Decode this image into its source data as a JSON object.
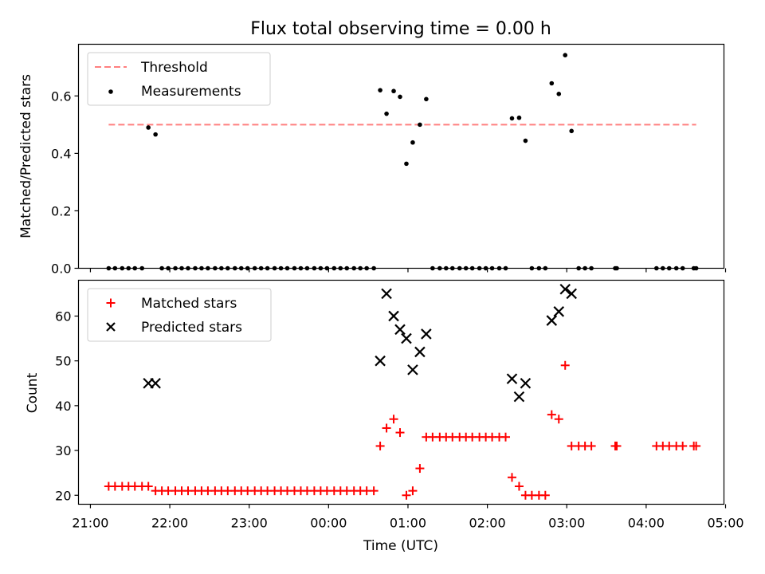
{
  "chart_data": [
    {
      "type": "scatter",
      "title": "Flux total observing time = 0.00 h",
      "xlabel": "",
      "ylabel": "Matched/Predicted stars",
      "ylim": [
        0,
        0.78
      ],
      "yticks": [
        "0.0",
        "0.2",
        "0.4",
        "0.6"
      ],
      "yticks_values": [
        0,
        0.2,
        0.4,
        0.6
      ],
      "legend": {
        "placement": "upper-left",
        "entries": [
          "Threshold",
          "Measurements"
        ]
      },
      "threshold": {
        "name": "Threshold",
        "value": 0.5,
        "x_start": 21.23,
        "x_end": 28.63,
        "color": "#ff7f7f"
      },
      "series": [
        {
          "name": "Measurements",
          "color": "#000000",
          "points": [
            [
              21.23,
              0
            ],
            [
              21.31,
              0
            ],
            [
              21.4,
              0
            ],
            [
              21.48,
              0
            ],
            [
              21.56,
              0
            ],
            [
              21.65,
              0
            ],
            [
              21.73,
              0.49
            ],
            [
              21.82,
              0.466
            ],
            [
              21.9,
              0
            ],
            [
              21.98,
              0
            ],
            [
              22.07,
              0
            ],
            [
              22.15,
              0
            ],
            [
              22.23,
              0
            ],
            [
              22.32,
              0
            ],
            [
              22.4,
              0
            ],
            [
              22.48,
              0
            ],
            [
              22.57,
              0
            ],
            [
              22.65,
              0
            ],
            [
              22.73,
              0
            ],
            [
              22.82,
              0
            ],
            [
              22.9,
              0
            ],
            [
              22.98,
              0
            ],
            [
              23.07,
              0
            ],
            [
              23.15,
              0
            ],
            [
              23.23,
              0
            ],
            [
              23.32,
              0
            ],
            [
              23.4,
              0
            ],
            [
              23.48,
              0
            ],
            [
              23.57,
              0
            ],
            [
              23.65,
              0
            ],
            [
              23.73,
              0
            ],
            [
              23.82,
              0
            ],
            [
              23.9,
              0
            ],
            [
              23.98,
              0
            ],
            [
              24.07,
              0
            ],
            [
              24.15,
              0
            ],
            [
              24.23,
              0
            ],
            [
              24.32,
              0
            ],
            [
              24.4,
              0
            ],
            [
              24.48,
              0
            ],
            [
              24.57,
              0
            ],
            [
              24.65,
              0.62
            ],
            [
              24.73,
              0.538
            ],
            [
              24.82,
              0.617
            ],
            [
              24.9,
              0.597
            ],
            [
              24.98,
              0.364
            ],
            [
              25.06,
              0.438
            ],
            [
              25.15,
              0.5
            ],
            [
              25.23,
              0.589
            ],
            [
              25.31,
              0
            ],
            [
              25.4,
              0
            ],
            [
              25.48,
              0
            ],
            [
              25.56,
              0
            ],
            [
              25.65,
              0
            ],
            [
              25.73,
              0
            ],
            [
              25.81,
              0
            ],
            [
              25.9,
              0
            ],
            [
              25.98,
              0
            ],
            [
              26.06,
              0
            ],
            [
              26.15,
              0
            ],
            [
              26.23,
              0
            ],
            [
              26.31,
              0.522
            ],
            [
              26.4,
              0.524
            ],
            [
              26.48,
              0.444
            ],
            [
              26.56,
              0
            ],
            [
              26.65,
              0
            ],
            [
              26.73,
              0
            ],
            [
              26.81,
              0.644
            ],
            [
              26.9,
              0.607
            ],
            [
              26.98,
              0.742
            ],
            [
              27.06,
              0.478
            ],
            [
              27.15,
              0
            ],
            [
              27.23,
              0
            ],
            [
              27.31,
              0
            ],
            [
              27.61,
              0
            ],
            [
              27.63,
              0
            ],
            [
              28.13,
              0
            ],
            [
              28.21,
              0
            ],
            [
              28.29,
              0
            ],
            [
              28.38,
              0
            ],
            [
              28.46,
              0
            ],
            [
              28.6,
              0
            ],
            [
              28.63,
              0
            ]
          ]
        }
      ]
    },
    {
      "type": "scatter",
      "title": "",
      "xlabel": "Time (UTC)",
      "ylabel": "Count",
      "ylim": [
        18,
        68
      ],
      "yticks": [
        "20",
        "30",
        "40",
        "50",
        "60"
      ],
      "yticks_values": [
        20,
        30,
        40,
        50,
        60
      ],
      "xlim": [
        20.85,
        28.98
      ],
      "xticks": [
        "21:00",
        "22:00",
        "23:00",
        "00:00",
        "01:00",
        "02:00",
        "03:00",
        "04:00",
        "05:00"
      ],
      "xticks_values": [
        21,
        22,
        23,
        24,
        25,
        26,
        27,
        28,
        29
      ],
      "legend": {
        "placement": "upper-left",
        "entries": [
          "Matched stars",
          "Predicted stars"
        ]
      },
      "series": [
        {
          "name": "Matched stars",
          "marker": "plus",
          "color": "#ff0000",
          "points": [
            [
              21.23,
              22
            ],
            [
              21.31,
              22
            ],
            [
              21.4,
              22
            ],
            [
              21.48,
              22
            ],
            [
              21.56,
              22
            ],
            [
              21.65,
              22
            ],
            [
              21.73,
              22
            ],
            [
              21.82,
              21
            ],
            [
              21.9,
              21
            ],
            [
              21.98,
              21
            ],
            [
              22.07,
              21
            ],
            [
              22.15,
              21
            ],
            [
              22.23,
              21
            ],
            [
              22.32,
              21
            ],
            [
              22.4,
              21
            ],
            [
              22.48,
              21
            ],
            [
              22.57,
              21
            ],
            [
              22.65,
              21
            ],
            [
              22.73,
              21
            ],
            [
              22.82,
              21
            ],
            [
              22.9,
              21
            ],
            [
              22.98,
              21
            ],
            [
              23.07,
              21
            ],
            [
              23.15,
              21
            ],
            [
              23.23,
              21
            ],
            [
              23.32,
              21
            ],
            [
              23.4,
              21
            ],
            [
              23.48,
              21
            ],
            [
              23.57,
              21
            ],
            [
              23.65,
              21
            ],
            [
              23.73,
              21
            ],
            [
              23.82,
              21
            ],
            [
              23.9,
              21
            ],
            [
              23.98,
              21
            ],
            [
              24.07,
              21
            ],
            [
              24.15,
              21
            ],
            [
              24.23,
              21
            ],
            [
              24.32,
              21
            ],
            [
              24.4,
              21
            ],
            [
              24.48,
              21
            ],
            [
              24.57,
              21
            ],
            [
              24.65,
              31
            ],
            [
              24.73,
              35
            ],
            [
              24.82,
              37
            ],
            [
              24.9,
              34
            ],
            [
              24.98,
              20
            ],
            [
              25.06,
              21
            ],
            [
              25.15,
              26
            ],
            [
              25.23,
              33
            ],
            [
              25.31,
              33
            ],
            [
              25.4,
              33
            ],
            [
              25.48,
              33
            ],
            [
              25.56,
              33
            ],
            [
              25.65,
              33
            ],
            [
              25.73,
              33
            ],
            [
              25.81,
              33
            ],
            [
              25.9,
              33
            ],
            [
              25.98,
              33
            ],
            [
              26.06,
              33
            ],
            [
              26.15,
              33
            ],
            [
              26.23,
              33
            ],
            [
              26.31,
              24
            ],
            [
              26.4,
              22
            ],
            [
              26.48,
              20
            ],
            [
              26.56,
              20
            ],
            [
              26.65,
              20
            ],
            [
              26.73,
              20
            ],
            [
              26.81,
              38
            ],
            [
              26.9,
              37
            ],
            [
              26.98,
              49
            ],
            [
              27.06,
              31
            ],
            [
              27.15,
              31
            ],
            [
              27.23,
              31
            ],
            [
              27.31,
              31
            ],
            [
              27.61,
              31
            ],
            [
              27.63,
              31
            ],
            [
              28.13,
              31
            ],
            [
              28.21,
              31
            ],
            [
              28.29,
              31
            ],
            [
              28.38,
              31
            ],
            [
              28.46,
              31
            ],
            [
              28.6,
              31
            ],
            [
              28.63,
              31
            ]
          ]
        },
        {
          "name": "Predicted stars",
          "marker": "x",
          "color": "#000000",
          "points": [
            [
              21.73,
              45
            ],
            [
              21.82,
              45
            ],
            [
              24.65,
              50
            ],
            [
              24.73,
              65
            ],
            [
              24.82,
              60
            ],
            [
              24.9,
              57
            ],
            [
              24.98,
              55
            ],
            [
              25.06,
              48
            ],
            [
              25.15,
              52
            ],
            [
              25.23,
              56
            ],
            [
              26.31,
              46
            ],
            [
              26.4,
              42
            ],
            [
              26.48,
              45
            ],
            [
              26.81,
              59
            ],
            [
              26.9,
              61
            ],
            [
              26.98,
              66
            ],
            [
              27.06,
              65
            ]
          ]
        }
      ]
    }
  ]
}
